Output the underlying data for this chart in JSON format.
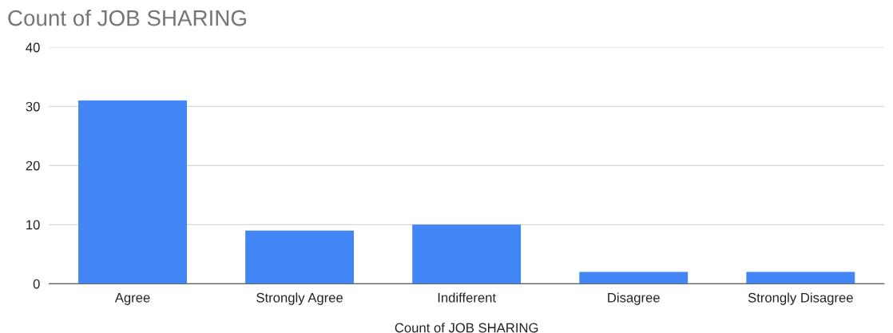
{
  "chart_data": {
    "type": "bar",
    "title": "Count of JOB SHARING",
    "xlabel": "Count of JOB SHARING",
    "categories": [
      "Agree",
      "Strongly Agree",
      "Indifferent",
      "Disagree",
      "Strongly Disagree"
    ],
    "values": [
      31,
      9,
      10,
      2,
      2
    ],
    "color": "#4285f4",
    "ylim": [
      0,
      40
    ],
    "yticks": [
      0,
      10,
      20,
      30,
      40
    ],
    "grid": "y",
    "legend": false
  }
}
